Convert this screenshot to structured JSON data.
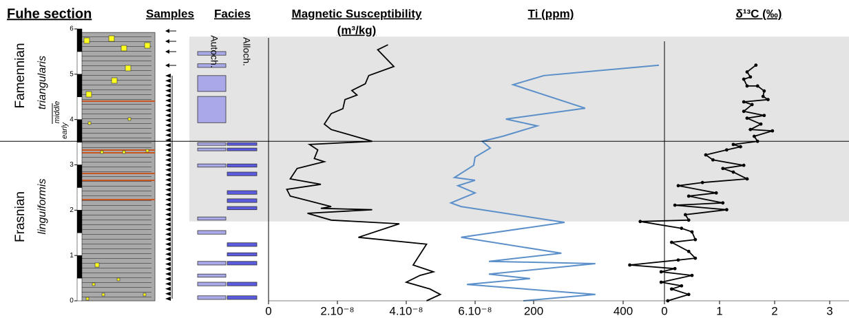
{
  "chart_data": [
    {
      "type": "column",
      "title": "Fuhe section",
      "ylim": [
        0,
        6
      ],
      "yticks": [
        0,
        1,
        2,
        3,
        4,
        5,
        6
      ],
      "stages": [
        "Famennian",
        "Frasnian"
      ],
      "zones": [
        "triangularis",
        "linguiformis"
      ],
      "subzones": [
        "middle",
        "early"
      ],
      "boundary": 3.52,
      "shading": [
        1.75,
        5.83
      ]
    },
    {
      "type": "facies",
      "title": "Facies",
      "samples_title": "Samples",
      "series": [
        {
          "name": "Autoch.",
          "color": "#a9a9ea",
          "intervals": [
            [
              5.42,
              5.5
            ],
            [
              5.15,
              5.23
            ],
            [
              4.62,
              4.97
            ],
            [
              3.93,
              4.51
            ],
            [
              3.43,
              3.49
            ],
            [
              3.31,
              3.37
            ],
            [
              2.95,
              3.02
            ],
            [
              1.78,
              1.85
            ],
            [
              1.47,
              1.55
            ],
            [
              0.79,
              0.87
            ],
            [
              0.52,
              0.59
            ],
            [
              0.33,
              0.41
            ],
            [
              0.03,
              0.11
            ]
          ]
        },
        {
          "name": "Alloch.",
          "color": "#5b5be0",
          "intervals": [
            [
              3.43,
              3.49
            ],
            [
              3.31,
              3.37
            ],
            [
              2.95,
              3.02
            ],
            [
              2.76,
              2.84
            ],
            [
              2.35,
              2.43
            ],
            [
              2.17,
              2.25
            ],
            [
              2.01,
              2.08
            ],
            [
              1.2,
              1.28
            ],
            [
              0.99,
              1.06
            ],
            [
              0.79,
              0.87
            ],
            [
              0.33,
              0.41
            ],
            [
              0.03,
              0.11
            ]
          ]
        }
      ]
    },
    {
      "type": "line",
      "title": "Magnetic Susceptibility",
      "x_label": "(m³/kg)",
      "color": "#000000",
      "xlim": [
        0,
        6e-08
      ],
      "xticks": [
        0,
        {
          "value": 2e-08,
          "label": "2.10⁻⁸"
        },
        {
          "value": 4e-08,
          "label": "4.10⁻⁸"
        },
        {
          "value": 6e-08,
          "label": "6.10⁻⁸"
        }
      ],
      "heights": [
        5.65,
        5.54,
        5.17,
        4.97,
        4.79,
        4.64,
        4.54,
        4.44,
        4.24,
        4.13,
        3.9,
        3.78,
        3.52,
        3.45,
        3.33,
        3.14,
        3.07,
        2.92,
        2.69,
        2.57,
        2.46,
        2.31,
        2.08,
        2.04,
        2.01,
        1.93,
        1.78,
        1.7,
        1.4,
        1.25,
        0.79,
        0.64,
        0.56,
        0.41,
        0.26,
        0.14,
        0
      ],
      "values": [
        3.47e-08,
        3.17e-08,
        3.64e-08,
        2.91e-08,
        2.81e-08,
        2.42e-08,
        2.57e-08,
        2.22e-08,
        2.16e-08,
        1.82e-08,
        1.62e-08,
        1.82e-08,
        3.01e-08,
        1.19e-08,
        1.43e-08,
        1.33e-08,
        1.62e-08,
        8.3e-09,
        6.3e-09,
        1.52e-08,
        5.3e-09,
        6.3e-09,
        1.82e-08,
        1.52e-08,
        3.01e-08,
        1.13e-08,
        1.82e-08,
        3.8e-08,
        2.61e-08,
        4.59e-08,
        4.2e-08,
        4.79e-08,
        4.4e-08,
        4e-08,
        4.69e-08,
        4.99e-08,
        4.59e-08
      ]
    },
    {
      "type": "line",
      "title": "Ti (ppm)",
      "color": "#5b8fc9",
      "xlim": [
        0,
        420
      ],
      "xticks": [
        200,
        400
      ],
      "heights": [
        5.2,
        4.97,
        4.77,
        4.25,
        4.01,
        3.86,
        3.63,
        3.52,
        3.37,
        3.17,
        2.99,
        2.72,
        2.66,
        2.54,
        2.38,
        2.16,
        2.08,
        1.73,
        1.4,
        1.05,
        0.87,
        0.82,
        0.59,
        0.49,
        0.36,
        0.14,
        0
      ],
      "values": [
        480,
        223,
        154,
        315,
        138,
        208,
        131,
        85,
        103,
        69,
        66,
        23,
        69,
        31,
        69,
        15,
        38,
        269,
        38,
        262,
        100,
        338,
        100,
        192,
        51,
        338,
        177
      ]
    },
    {
      "type": "line",
      "title": "δ¹³C (‰)",
      "color": "#000000",
      "markers": true,
      "zero_line": true,
      "xlim": [
        -0.7,
        3.3
      ],
      "xticks": [
        0,
        1,
        2,
        3
      ],
      "heights": [
        5.2,
        5.05,
        4.94,
        4.89,
        4.74,
        4.74,
        4.63,
        4.51,
        4.44,
        4.39,
        4.33,
        4.18,
        4.09,
        4.03,
        3.9,
        3.78,
        3.75,
        3.63,
        3.52,
        3.45,
        3.4,
        3.33,
        3.22,
        3.11,
        2.99,
        2.92,
        2.84,
        2.69,
        2.61,
        2.54,
        2.38,
        2.31,
        2.16,
        2.11,
        2.01,
        1.9,
        1.78,
        1.75,
        1.6,
        1.52,
        1.35,
        1.29,
        1.09,
        0.94,
        0.9,
        0.79,
        0.71,
        0.64,
        0.56,
        0.41,
        0.33,
        0.26,
        0.14,
        0
      ],
      "values": [
        1.66,
        1.5,
        1.56,
        1.44,
        1.5,
        1.69,
        1.81,
        1.79,
        1.88,
        1.44,
        1.59,
        1.44,
        1.81,
        1.5,
        1.75,
        1.56,
        1.96,
        1.63,
        1.69,
        1.25,
        1.38,
        1.13,
        0.75,
        0.88,
        1.44,
        1.06,
        1.25,
        1.5,
        0.69,
        0.25,
        0.94,
        0.44,
        1.06,
        0.19,
        1.13,
        0.38,
        0.44,
        -0.44,
        0.31,
        0.5,
        0.56,
        0.13,
        0.44,
        0.56,
        0.25,
        -0.63,
        0.19,
        -0.06,
        0.5,
        -0.06,
        0.31,
        0.13,
        0.44,
        0.06
      ]
    }
  ]
}
